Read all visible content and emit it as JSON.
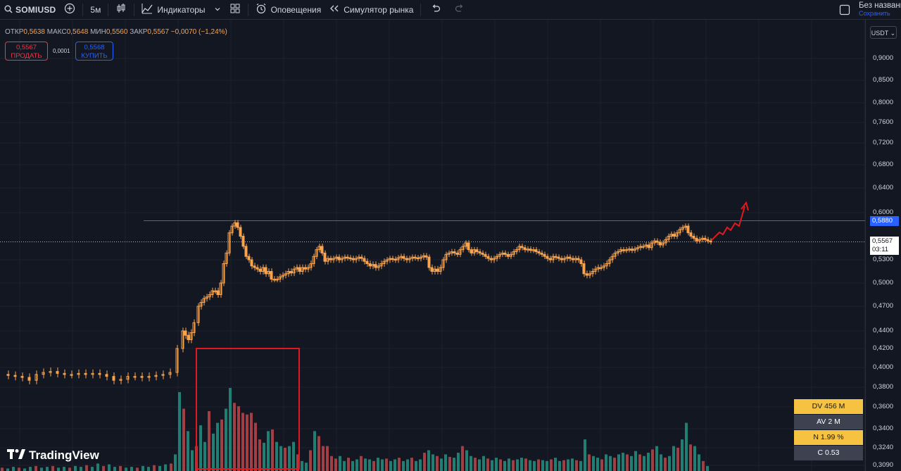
{
  "toolbar": {
    "symbol": "SOMIUSD",
    "interval": "5м",
    "indicators": "Индикаторы",
    "alerts": "Оповещения",
    "replay": "Симулятор рынка",
    "layout_title": "Без названия",
    "save_label": "Сохранить",
    "icons": [
      "search-icon",
      "add-symbol-icon",
      "candles-icon",
      "indicators-icon",
      "chevron-down-icon",
      "layouts-icon",
      "alert-clock-icon",
      "replay-icon",
      "undo-icon",
      "redo-icon",
      "checkbox-icon"
    ]
  },
  "ohlc": {
    "open_label": "ОТКР",
    "open": "0,5638",
    "high_label": "МАКС",
    "high": "0,5648",
    "low_label": "МИН",
    "low": "0,5560",
    "close_label": "ЗАКР",
    "close": "0,5567",
    "change": "−0,0070 (−1,24%)"
  },
  "trade": {
    "sell_price": "0,5567",
    "sell_label": "ПРОДАТЬ",
    "spread": "0,0001",
    "buy_price": "0,5568",
    "buy_label": "КУПИТЬ"
  },
  "price_axis": {
    "currency": "USDT",
    "ticks": [
      "0,9000",
      "0,8500",
      "0,8000",
      "0,7600",
      "0,7200",
      "0,6800",
      "0,6400",
      "0,6000",
      "0,5300",
      "0,5000",
      "0,4700",
      "0,4400",
      "0,4200",
      "0,4000",
      "0,3800",
      "0,3600",
      "0,3400",
      "0,3240",
      "0,3090"
    ],
    "level_tag": "0,5880",
    "current_price": "0,5567",
    "countdown": "03:11"
  },
  "stats": {
    "dv": "DV 456 M",
    "av": "AV 2 M",
    "n": "N 1.99 %",
    "c": "C   0.53"
  },
  "branding": {
    "logo": "TradingView"
  },
  "colors": {
    "background": "#131722",
    "candle": "#f7a350",
    "vol_up": "#22ab94",
    "vol_down": "#f23645",
    "level_line": "#2962ff",
    "annotation": "#f23645"
  },
  "chart_data": {
    "type": "candlestick",
    "symbol": "SOMIUSD",
    "interval": "5м",
    "resistance_level": 0.588,
    "last_price": 0.5567,
    "price_series": [
      [
        0,
        0.393
      ],
      [
        10,
        0.392
      ],
      [
        20,
        0.391
      ],
      [
        30,
        0.39
      ],
      [
        40,
        0.387
      ],
      [
        50,
        0.393
      ],
      [
        60,
        0.395
      ],
      [
        70,
        0.396
      ],
      [
        80,
        0.394
      ],
      [
        90,
        0.393
      ],
      [
        100,
        0.393
      ],
      [
        110,
        0.394
      ],
      [
        120,
        0.393
      ],
      [
        130,
        0.394
      ],
      [
        140,
        0.393
      ],
      [
        150,
        0.391
      ],
      [
        160,
        0.387
      ],
      [
        170,
        0.388
      ],
      [
        180,
        0.391
      ],
      [
        190,
        0.391
      ],
      [
        200,
        0.39
      ],
      [
        210,
        0.391
      ],
      [
        220,
        0.392
      ],
      [
        230,
        0.393
      ],
      [
        240,
        0.395
      ],
      [
        250,
        0.42
      ],
      [
        258,
        0.44
      ],
      [
        262,
        0.435
      ],
      [
        266,
        0.43
      ],
      [
        270,
        0.438
      ],
      [
        274,
        0.45
      ],
      [
        280,
        0.47
      ],
      [
        284,
        0.475
      ],
      [
        288,
        0.48
      ],
      [
        292,
        0.482
      ],
      [
        296,
        0.485
      ],
      [
        300,
        0.49
      ],
      [
        304,
        0.49
      ],
      [
        308,
        0.485
      ],
      [
        312,
        0.5
      ],
      [
        316,
        0.525
      ],
      [
        320,
        0.54
      ],
      [
        324,
        0.57
      ],
      [
        328,
        0.58
      ],
      [
        332,
        0.585
      ],
      [
        336,
        0.578
      ],
      [
        340,
        0.565
      ],
      [
        344,
        0.55
      ],
      [
        348,
        0.535
      ],
      [
        352,
        0.53
      ],
      [
        356,
        0.522
      ],
      [
        360,
        0.52
      ],
      [
        364,
        0.518
      ],
      [
        368,
        0.515
      ],
      [
        372,
        0.52
      ],
      [
        376,
        0.512
      ],
      [
        380,
        0.515
      ],
      [
        384,
        0.505
      ],
      [
        388,
        0.505
      ],
      [
        392,
        0.505
      ],
      [
        396,
        0.508
      ],
      [
        400,
        0.51
      ],
      [
        404,
        0.512
      ],
      [
        408,
        0.515
      ],
      [
        412,
        0.513
      ],
      [
        416,
        0.518
      ],
      [
        420,
        0.52
      ],
      [
        424,
        0.515
      ],
      [
        428,
        0.52
      ],
      [
        432,
        0.518
      ],
      [
        436,
        0.52
      ],
      [
        440,
        0.525
      ],
      [
        444,
        0.535
      ],
      [
        448,
        0.545
      ],
      [
        452,
        0.55
      ],
      [
        456,
        0.54
      ],
      [
        460,
        0.528
      ],
      [
        464,
        0.532
      ],
      [
        468,
        0.53
      ],
      [
        472,
        0.532
      ],
      [
        476,
        0.534
      ],
      [
        480,
        0.53
      ],
      [
        484,
        0.532
      ],
      [
        488,
        0.534
      ],
      [
        492,
        0.533
      ],
      [
        496,
        0.532
      ],
      [
        500,
        0.53
      ],
      [
        504,
        0.532
      ],
      [
        508,
        0.534
      ],
      [
        512,
        0.532
      ],
      [
        516,
        0.528
      ],
      [
        520,
        0.525
      ],
      [
        524,
        0.522
      ],
      [
        528,
        0.524
      ],
      [
        532,
        0.52
      ],
      [
        536,
        0.522
      ],
      [
        540,
        0.525
      ],
      [
        544,
        0.528
      ],
      [
        548,
        0.53
      ],
      [
        552,
        0.532
      ],
      [
        556,
        0.531
      ],
      [
        560,
        0.53
      ],
      [
        564,
        0.533
      ],
      [
        568,
        0.535
      ],
      [
        572,
        0.532
      ],
      [
        576,
        0.53
      ],
      [
        580,
        0.532
      ],
      [
        584,
        0.534
      ],
      [
        588,
        0.533
      ],
      [
        592,
        0.532
      ],
      [
        596,
        0.534
      ],
      [
        600,
        0.536
      ],
      [
        604,
        0.534
      ],
      [
        608,
        0.52
      ],
      [
        612,
        0.515
      ],
      [
        616,
        0.518
      ],
      [
        620,
        0.515
      ],
      [
        624,
        0.52
      ],
      [
        628,
        0.53
      ],
      [
        632,
        0.538
      ],
      [
        636,
        0.54
      ],
      [
        640,
        0.542
      ],
      [
        644,
        0.54
      ],
      [
        648,
        0.538
      ],
      [
        652,
        0.545
      ],
      [
        656,
        0.55
      ],
      [
        660,
        0.555
      ],
      [
        664,
        0.545
      ],
      [
        668,
        0.54
      ],
      [
        672,
        0.545
      ],
      [
        676,
        0.542
      ],
      [
        680,
        0.54
      ],
      [
        684,
        0.538
      ],
      [
        688,
        0.535
      ],
      [
        692,
        0.532
      ],
      [
        696,
        0.53
      ],
      [
        700,
        0.532
      ],
      [
        704,
        0.535
      ],
      [
        708,
        0.538
      ],
      [
        712,
        0.54
      ],
      [
        716,
        0.538
      ],
      [
        720,
        0.535
      ],
      [
        724,
        0.538
      ],
      [
        728,
        0.542
      ],
      [
        732,
        0.545
      ],
      [
        736,
        0.55
      ],
      [
        740,
        0.548
      ],
      [
        744,
        0.545
      ],
      [
        748,
        0.546
      ],
      [
        752,
        0.544
      ],
      [
        756,
        0.545
      ],
      [
        760,
        0.542
      ],
      [
        764,
        0.54
      ],
      [
        768,
        0.538
      ],
      [
        772,
        0.535
      ],
      [
        776,
        0.532
      ],
      [
        780,
        0.53
      ],
      [
        784,
        0.535
      ],
      [
        788,
        0.534
      ],
      [
        792,
        0.532
      ],
      [
        796,
        0.53
      ],
      [
        800,
        0.532
      ],
      [
        804,
        0.534
      ],
      [
        808,
        0.532
      ],
      [
        812,
        0.53
      ],
      [
        816,
        0.532
      ],
      [
        820,
        0.53
      ],
      [
        824,
        0.525
      ],
      [
        828,
        0.512
      ],
      [
        832,
        0.51
      ],
      [
        836,
        0.512
      ],
      [
        840,
        0.515
      ],
      [
        844,
        0.518
      ],
      [
        848,
        0.52
      ],
      [
        852,
        0.52
      ],
      [
        856,
        0.522
      ],
      [
        860,
        0.525
      ],
      [
        864,
        0.53
      ],
      [
        868,
        0.535
      ],
      [
        872,
        0.54
      ],
      [
        876,
        0.542
      ],
      [
        880,
        0.545
      ],
      [
        884,
        0.544
      ],
      [
        888,
        0.545
      ],
      [
        892,
        0.546
      ],
      [
        896,
        0.544
      ],
      [
        900,
        0.546
      ],
      [
        904,
        0.548
      ],
      [
        908,
        0.55
      ],
      [
        912,
        0.55
      ],
      [
        916,
        0.552
      ],
      [
        920,
        0.548
      ],
      [
        924,
        0.555
      ],
      [
        928,
        0.558
      ],
      [
        932,
        0.556
      ],
      [
        936,
        0.552
      ],
      [
        940,
        0.555
      ],
      [
        944,
        0.56
      ],
      [
        948,
        0.565
      ],
      [
        952,
        0.568
      ],
      [
        956,
        0.565
      ],
      [
        960,
        0.57
      ],
      [
        964,
        0.575
      ],
      [
        968,
        0.578
      ],
      [
        972,
        0.58
      ],
      [
        976,
        0.57
      ],
      [
        980,
        0.565
      ],
      [
        984,
        0.562
      ],
      [
        988,
        0.558
      ],
      [
        992,
        0.56
      ],
      [
        996,
        0.562
      ],
      [
        1000,
        0.56
      ],
      [
        1004,
        0.558
      ],
      [
        1008,
        0.5567
      ]
    ],
    "volume_series": [
      [
        0,
        0.04
      ],
      [
        8,
        0.03
      ],
      [
        16,
        0.05
      ],
      [
        24,
        0.04
      ],
      [
        32,
        0.03
      ],
      [
        40,
        0.05
      ],
      [
        48,
        0.06
      ],
      [
        56,
        0.04
      ],
      [
        64,
        0.05
      ],
      [
        72,
        0.06
      ],
      [
        80,
        0.04
      ],
      [
        88,
        0.05
      ],
      [
        96,
        0.04
      ],
      [
        104,
        0.06
      ],
      [
        112,
        0.05
      ],
      [
        120,
        0.07
      ],
      [
        128,
        0.05
      ],
      [
        136,
        0.09
      ],
      [
        144,
        0.06
      ],
      [
        152,
        0.08
      ],
      [
        160,
        0.05
      ],
      [
        168,
        0.06
      ],
      [
        176,
        0.04
      ],
      [
        184,
        0.05
      ],
      [
        192,
        0.04
      ],
      [
        200,
        0.06
      ],
      [
        208,
        0.05
      ],
      [
        216,
        0.07
      ],
      [
        224,
        0.06
      ],
      [
        232,
        0.08
      ],
      [
        240,
        0.09
      ],
      [
        246,
        0.2
      ],
      [
        252,
        0.95
      ],
      [
        258,
        0.75
      ],
      [
        264,
        0.48
      ],
      [
        270,
        0.25
      ],
      [
        276,
        0.3
      ],
      [
        282,
        0.55
      ],
      [
        288,
        0.35
      ],
      [
        294,
        0.72
      ],
      [
        300,
        0.45
      ],
      [
        306,
        0.58
      ],
      [
        312,
        0.62
      ],
      [
        318,
        0.75
      ],
      [
        324,
        1.0
      ],
      [
        330,
        0.82
      ],
      [
        336,
        0.78
      ],
      [
        342,
        0.7
      ],
      [
        348,
        0.68
      ],
      [
        354,
        0.7
      ],
      [
        360,
        0.58
      ],
      [
        366,
        0.38
      ],
      [
        372,
        0.34
      ],
      [
        378,
        0.48
      ],
      [
        384,
        0.5
      ],
      [
        390,
        0.35
      ],
      [
        396,
        0.3
      ],
      [
        402,
        0.28
      ],
      [
        408,
        0.3
      ],
      [
        414,
        0.35
      ],
      [
        420,
        0.2
      ],
      [
        426,
        0.12
      ],
      [
        432,
        0.1
      ],
      [
        438,
        0.25
      ],
      [
        444,
        0.48
      ],
      [
        450,
        0.42
      ],
      [
        456,
        0.3
      ],
      [
        462,
        0.3
      ],
      [
        468,
        0.18
      ],
      [
        474,
        0.15
      ],
      [
        480,
        0.18
      ],
      [
        486,
        0.12
      ],
      [
        492,
        0.16
      ],
      [
        498,
        0.12
      ],
      [
        504,
        0.14
      ],
      [
        510,
        0.18
      ],
      [
        516,
        0.15
      ],
      [
        522,
        0.14
      ],
      [
        528,
        0.12
      ],
      [
        534,
        0.16
      ],
      [
        540,
        0.14
      ],
      [
        546,
        0.15
      ],
      [
        552,
        0.12
      ],
      [
        558,
        0.14
      ],
      [
        564,
        0.16
      ],
      [
        570,
        0.12
      ],
      [
        576,
        0.14
      ],
      [
        582,
        0.16
      ],
      [
        588,
        0.12
      ],
      [
        594,
        0.14
      ],
      [
        600,
        0.22
      ],
      [
        606,
        0.25
      ],
      [
        612,
        0.2
      ],
      [
        618,
        0.18
      ],
      [
        624,
        0.15
      ],
      [
        630,
        0.2
      ],
      [
        636,
        0.17
      ],
      [
        642,
        0.16
      ],
      [
        648,
        0.22
      ],
      [
        654,
        0.3
      ],
      [
        660,
        0.25
      ],
      [
        666,
        0.18
      ],
      [
        672,
        0.16
      ],
      [
        678,
        0.14
      ],
      [
        684,
        0.18
      ],
      [
        690,
        0.15
      ],
      [
        696,
        0.13
      ],
      [
        702,
        0.16
      ],
      [
        708,
        0.14
      ],
      [
        714,
        0.12
      ],
      [
        720,
        0.15
      ],
      [
        726,
        0.13
      ],
      [
        732,
        0.14
      ],
      [
        738,
        0.16
      ],
      [
        744,
        0.15
      ],
      [
        750,
        0.13
      ],
      [
        756,
        0.12
      ],
      [
        762,
        0.14
      ],
      [
        768,
        0.13
      ],
      [
        774,
        0.12
      ],
      [
        780,
        0.14
      ],
      [
        786,
        0.16
      ],
      [
        792,
        0.12
      ],
      [
        798,
        0.13
      ],
      [
        804,
        0.14
      ],
      [
        810,
        0.15
      ],
      [
        816,
        0.13
      ],
      [
        822,
        0.12
      ],
      [
        828,
        0.38
      ],
      [
        834,
        0.2
      ],
      [
        840,
        0.18
      ],
      [
        846,
        0.16
      ],
      [
        852,
        0.14
      ],
      [
        858,
        0.2
      ],
      [
        864,
        0.18
      ],
      [
        870,
        0.16
      ],
      [
        876,
        0.2
      ],
      [
        882,
        0.22
      ],
      [
        888,
        0.2
      ],
      [
        894,
        0.18
      ],
      [
        900,
        0.24
      ],
      [
        906,
        0.2
      ],
      [
        912,
        0.18
      ],
      [
        918,
        0.22
      ],
      [
        924,
        0.26
      ],
      [
        930,
        0.3
      ],
      [
        936,
        0.2
      ],
      [
        942,
        0.16
      ],
      [
        948,
        0.18
      ],
      [
        954,
        0.3
      ],
      [
        960,
        0.28
      ],
      [
        966,
        0.38
      ],
      [
        972,
        0.58
      ],
      [
        978,
        0.32
      ],
      [
        984,
        0.3
      ],
      [
        990,
        0.2
      ],
      [
        996,
        0.12
      ],
      [
        1002,
        0.06
      ]
    ]
  }
}
